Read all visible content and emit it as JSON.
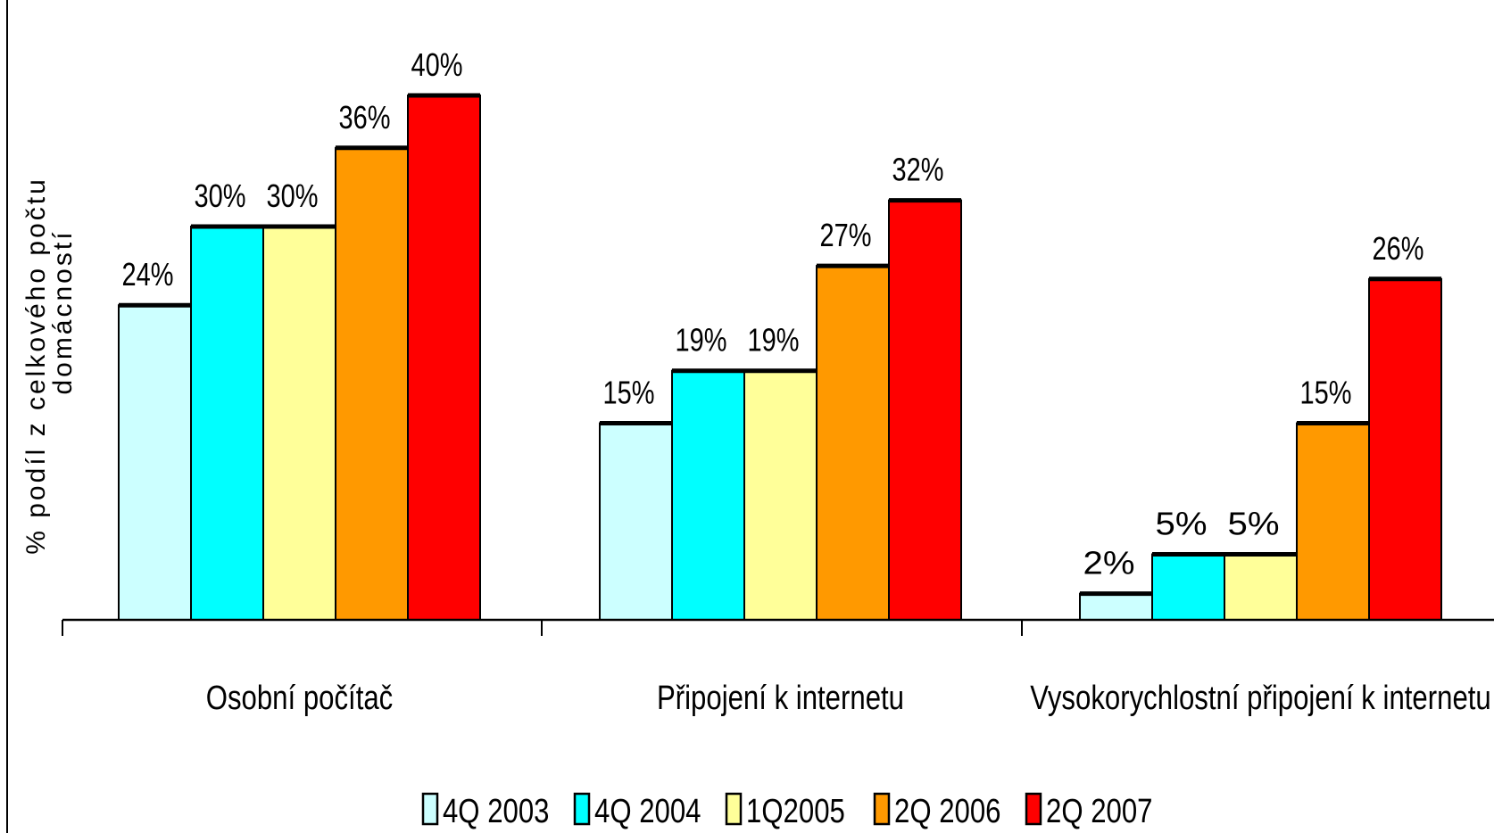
{
  "chart_data": {
    "type": "bar",
    "categories": [
      "Osobní počítač",
      "Připojení k internetu",
      "Vysokorychlostní připojení k internetu"
    ],
    "series": [
      {
        "name": "4Q 2003",
        "color": "#ccffff",
        "values": [
          24,
          15,
          2
        ],
        "labels": [
          "24%",
          "15%",
          "2%"
        ]
      },
      {
        "name": "4Q 2004",
        "color": "#00ffff",
        "values": [
          30,
          19,
          5
        ],
        "labels": [
          "30%",
          "19%",
          "5%"
        ]
      },
      {
        "name": "1Q2005",
        "color": "#ffff99",
        "values": [
          30,
          19,
          5
        ],
        "labels": [
          "30%",
          "19%",
          "5%"
        ]
      },
      {
        "name": "2Q 2006",
        "color": "#ff9900",
        "values": [
          36,
          27,
          15
        ],
        "labels": [
          "36%",
          "27%",
          "15%"
        ]
      },
      {
        "name": "2Q 2007",
        "color": "#ff0000",
        "values": [
          40,
          32,
          26
        ],
        "labels": [
          "40%",
          "32%",
          "26%"
        ]
      }
    ],
    "ylabel_line1": "% podíl z celkového počtu",
    "ylabel_line2": "domácností",
    "ylim": [
      0,
      40
    ],
    "grid": false,
    "legend_position": "bottom"
  }
}
